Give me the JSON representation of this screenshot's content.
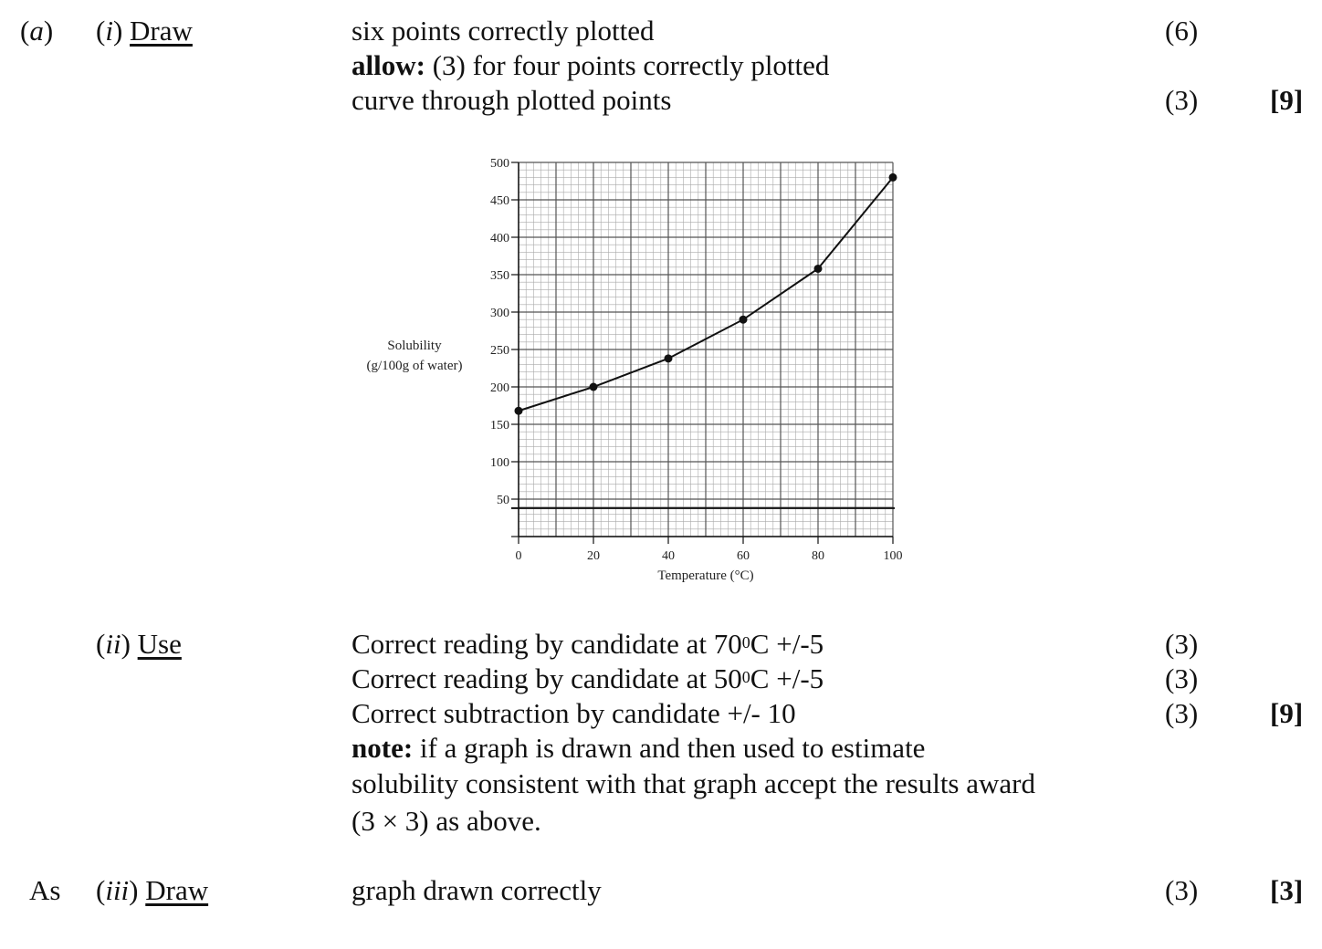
{
  "part_a": {
    "label_open": "(",
    "label_letter": "a",
    "label_close": ")",
    "sub_i_open": "(",
    "sub_i": "i",
    "sub_i_close": ") ",
    "sub_i_verb": "Draw",
    "line1": "six points correctly plotted",
    "line2_bold": "allow:",
    "line2_rest": " (3) for four points correctly plotted",
    "line3": "curve through plotted points",
    "mark1": "(6)",
    "mark3": "(3)",
    "total": "[9]"
  },
  "part_ii": {
    "sub_open": "(",
    "sub": "ii",
    "sub_close": ") ",
    "verb": "Use",
    "l1_pre": "Correct reading by candidate at 70",
    "l1_sup": "0",
    "l1_post": "C +/-5",
    "l2_pre": "Correct reading by candidate at 50",
    "l2_sup": "0",
    "l2_post": "C +/-5",
    "l3": "Correct subtraction by candidate +/- 10",
    "l4_bold": "note:",
    "l4_rest": " if a graph is drawn and then used to estimate",
    "l5": "solubility consistent with that graph accept the results award",
    "l6": "(3 × 3) as above.",
    "m1": "(3)",
    "m2": "(3)",
    "m3": "(3)",
    "total": "[9]"
  },
  "part_iii": {
    "prefix": "As",
    "sub_open": "(",
    "sub": "iii",
    "sub_close": ") ",
    "verb": "Draw",
    "line": "graph drawn correctly",
    "mark": "(3)",
    "total": "[3]"
  },
  "chart_data": {
    "type": "line",
    "x": [
      0,
      20,
      40,
      60,
      80,
      100
    ],
    "values": [
      168,
      200,
      238,
      290,
      358,
      480
    ],
    "xlabel": "Temperature (°C)",
    "ylabel_line1": "Solubility",
    "ylabel_line2": "(g/100g of water)",
    "xlim": [
      0,
      100
    ],
    "ylim": [
      0,
      500
    ],
    "x_ticks": [
      "0",
      "20",
      "40",
      "60",
      "80",
      "100"
    ],
    "y_ticks": [
      "50",
      "100",
      "150",
      "200",
      "250",
      "300",
      "350",
      "400",
      "450",
      "500"
    ],
    "grid": true,
    "extra_horizontal_line_value": 38
  }
}
